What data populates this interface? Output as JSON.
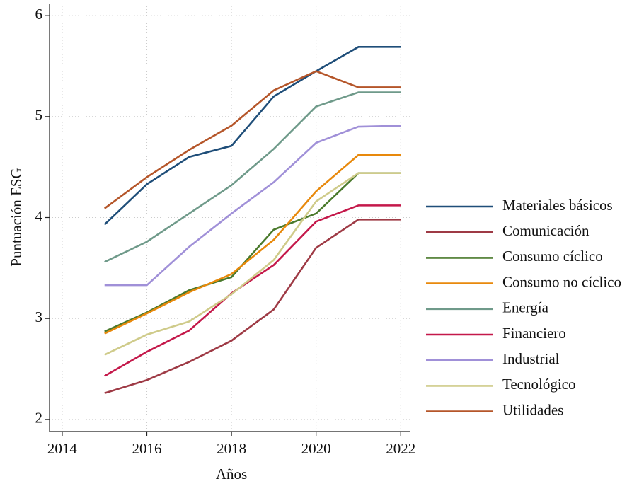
{
  "chart_data": {
    "type": "line",
    "x_label": "Años",
    "y_label": "Puntuación ESG",
    "x": [
      2015,
      2016,
      2017,
      2018,
      2019,
      2020,
      2021,
      2022
    ],
    "xlim": [
      2013.7,
      2022.23
    ],
    "xticks": [
      2014,
      2016,
      2018,
      2020,
      2022
    ],
    "ylim": [
      1.88,
      6.12
    ],
    "yticks": [
      2,
      3,
      4,
      5,
      6
    ],
    "grid": true,
    "legend": "right",
    "series": [
      {
        "name": "Materiales básicos",
        "color": "#1f4e79",
        "values": [
          3.93,
          4.33,
          4.6,
          4.71,
          5.2,
          5.45,
          5.69,
          5.69
        ]
      },
      {
        "name": "Comunicación",
        "color": "#9e3a45",
        "values": [
          2.26,
          2.39,
          2.57,
          2.78,
          3.09,
          3.7,
          3.98,
          3.98
        ]
      },
      {
        "name": "Consumo cíclico",
        "color": "#4a7a2c",
        "values": [
          2.87,
          3.06,
          3.28,
          3.41,
          3.88,
          4.04,
          4.44,
          4.44
        ]
      },
      {
        "name": "Consumo no cíclico",
        "color": "#e8890c",
        "values": [
          2.85,
          3.05,
          3.26,
          3.44,
          3.78,
          4.26,
          4.62,
          4.62
        ]
      },
      {
        "name": "Energía",
        "color": "#6f9a8a",
        "values": [
          3.56,
          3.76,
          4.04,
          4.32,
          4.68,
          5.1,
          5.24,
          5.24
        ]
      },
      {
        "name": "Financiero",
        "color": "#c4184a",
        "values": [
          2.43,
          2.67,
          2.88,
          3.25,
          3.53,
          3.96,
          4.12,
          4.12
        ]
      },
      {
        "name": "Industrial",
        "color": "#a090d8",
        "values": [
          3.33,
          3.33,
          3.71,
          4.04,
          4.35,
          4.74,
          4.9,
          4.91
        ]
      },
      {
        "name": "Tecnológico",
        "color": "#cfcb8a",
        "values": [
          2.64,
          2.84,
          2.97,
          3.24,
          3.58,
          4.16,
          4.44,
          4.44
        ]
      },
      {
        "name": "Utilidades",
        "color": "#b5562a",
        "values": [
          4.09,
          4.4,
          4.67,
          4.91,
          5.26,
          5.45,
          5.29,
          5.29
        ]
      }
    ]
  }
}
